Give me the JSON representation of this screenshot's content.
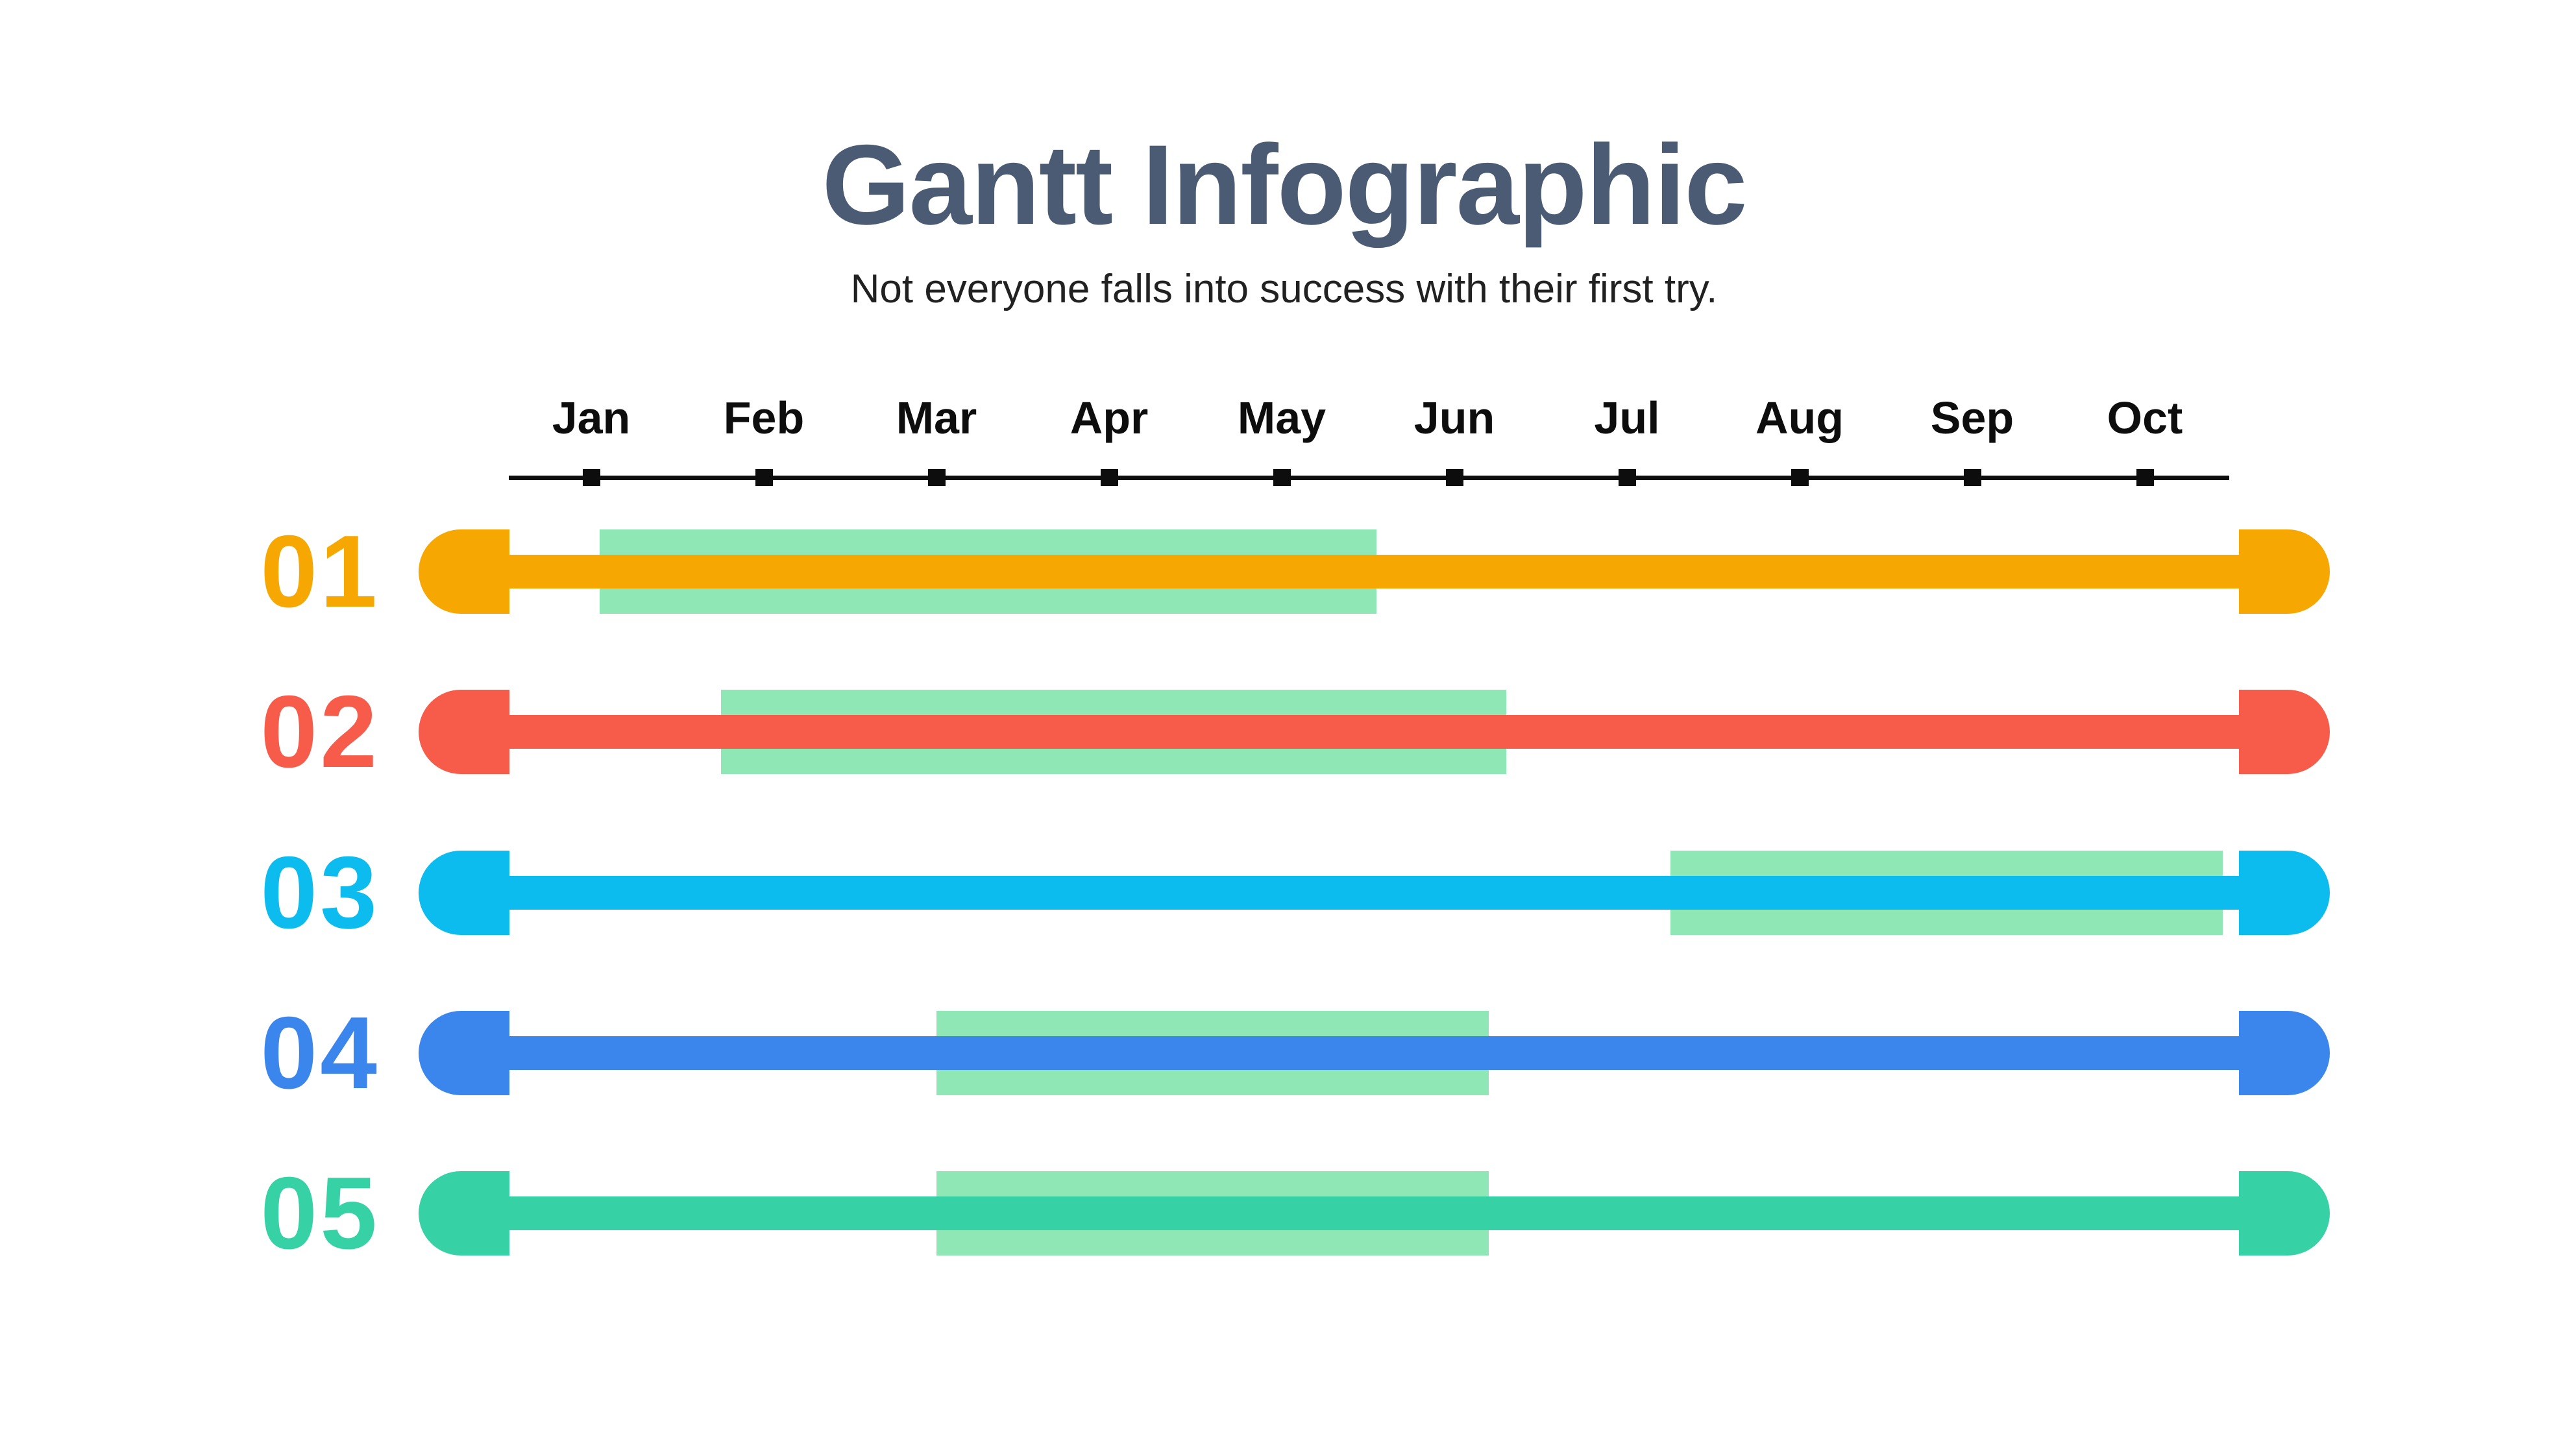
{
  "title": "Gantt Infographic",
  "subtitle": "Not everyone falls into success with their first try.",
  "colors": {
    "background": "#FFFFFF",
    "title_text": "#4A5B73",
    "subtitle_text": "#212121",
    "axis": "#0D0D0D",
    "highlight_band": "#8EE7B4"
  },
  "chart_data": {
    "type": "gantt",
    "title": "Gantt Infographic",
    "subtitle": "Not everyone falls into success with their first try.",
    "x_axis": {
      "unit": "months",
      "tick_labels": [
        "Jan",
        "Feb",
        "Mar",
        "Apr",
        "May",
        "Jun",
        "Jul",
        "Aug",
        "Sep",
        "Oct"
      ],
      "tick_style": "square-markers-on-line",
      "range_note": "timeline line spans slightly before Jan and past Oct"
    },
    "highlight_color": "#8EE7B4",
    "tasks": [
      {
        "label": "01",
        "color": "#F7A702",
        "bar_full_span": true,
        "highlight_start_month": 1.05,
        "highlight_end_month": 5.55,
        "highlight_readable": "Jan to mid-May"
      },
      {
        "label": "02",
        "color": "#F75B4A",
        "bar_full_span": true,
        "highlight_start_month": 1.75,
        "highlight_end_month": 6.3,
        "highlight_readable": "late Jan to early Jun"
      },
      {
        "label": "03",
        "color": "#0CBCEF",
        "bar_full_span": true,
        "highlight_start_month": 7.25,
        "highlight_end_month": 10.45,
        "highlight_readable": "early Jul to mid-Oct"
      },
      {
        "label": "04",
        "color": "#3B86EC",
        "bar_full_span": true,
        "highlight_start_month": 3.0,
        "highlight_end_month": 6.2,
        "highlight_readable": "Mar to early Jun"
      },
      {
        "label": "05",
        "color": "#36D1A5",
        "bar_full_span": true,
        "highlight_start_month": 3.0,
        "highlight_end_month": 6.2,
        "highlight_readable": "Mar to early Jun"
      }
    ],
    "layout_hint": {
      "grid": false,
      "legend": "none",
      "rows_top_to_bottom": [
        "01",
        "02",
        "03",
        "04",
        "05"
      ]
    }
  }
}
